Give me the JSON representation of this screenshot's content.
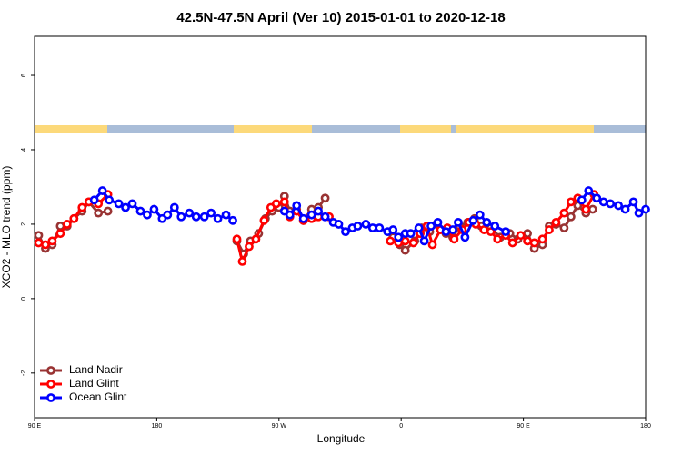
{
  "chart_data": {
    "type": "line",
    "title": "42.5N-47.5N April (Ver 10)   2015-01-01 to 2020-12-18",
    "x_label": "Longitude",
    "y_label": "XCO2 - MLO trend (ppm)",
    "xlim": [
      90,
      540
    ],
    "ylim": [
      -3.2,
      7.05
    ],
    "xticks": [
      {
        "value": 90,
        "label": "90 E"
      },
      {
        "value": 180,
        "label": "180"
      },
      {
        "value": 270,
        "label": "90 W"
      },
      {
        "value": 360,
        "label": "0"
      },
      {
        "value": 450,
        "label": "90 E"
      },
      {
        "value": 540,
        "label": "180"
      }
    ],
    "yticks": [
      -2,
      0,
      2,
      4,
      6
    ],
    "legend": "bottom-left",
    "series": [
      {
        "name": "Land Nadir",
        "color": "#993333",
        "x": [
          93,
          98,
          103,
          109,
          114,
          119,
          125,
          130,
          137,
          144,
          null,
          239,
          244,
          249,
          255,
          260,
          265,
          270,
          274,
          278,
          283,
          288,
          294,
          299,
          304,
          null,
          354,
          359,
          363,
          370,
          375,
          381,
          386,
          393,
          398,
          403,
          409,
          414,
          419,
          426,
          433,
          440,
          446,
          453,
          458,
          464,
          469,
          474,
          480,
          485,
          490,
          496,
          501
        ],
        "values": [
          1.7,
          1.35,
          1.45,
          1.95,
          1.95,
          2.15,
          2.35,
          2.6,
          2.3,
          2.35,
          null,
          1.55,
          1.2,
          1.55,
          1.75,
          2.15,
          2.35,
          2.45,
          2.75,
          2.35,
          2.4,
          2.1,
          2.4,
          2.45,
          2.7,
          null,
          1.65,
          1.45,
          1.3,
          1.55,
          1.9,
          1.8,
          2.0,
          1.75,
          1.65,
          1.95,
          2.05,
          2.15,
          1.95,
          1.9,
          1.65,
          1.75,
          1.6,
          1.75,
          1.35,
          1.45,
          1.95,
          2.0,
          1.9,
          2.2,
          2.5,
          2.3,
          2.4
        ]
      },
      {
        "name": "Land Glint",
        "color": "#ff0000",
        "x": [
          93,
          98,
          103,
          109,
          114,
          119,
          125,
          130,
          137,
          144,
          null,
          239,
          243,
          248,
          253,
          259,
          264,
          268,
          274,
          278,
          283,
          288,
          294,
          299,
          307,
          null,
          352,
          358,
          363,
          369,
          374,
          379,
          383,
          389,
          394,
          399,
          405,
          410,
          415,
          421,
          426,
          431,
          437,
          442,
          448,
          453,
          458,
          464,
          469,
          474,
          480,
          485,
          490,
          496,
          502
        ],
        "values": [
          1.5,
          1.45,
          1.55,
          1.75,
          2.0,
          2.15,
          2.45,
          2.6,
          2.55,
          2.8,
          null,
          1.6,
          1.0,
          1.4,
          1.6,
          2.1,
          2.45,
          2.55,
          2.6,
          2.2,
          2.35,
          2.1,
          2.15,
          2.2,
          2.2,
          null,
          1.55,
          1.5,
          1.55,
          1.5,
          1.75,
          1.95,
          1.45,
          1.85,
          1.9,
          1.6,
          1.85,
          2.05,
          2.0,
          1.85,
          1.8,
          1.6,
          1.7,
          1.5,
          1.7,
          1.55,
          1.5,
          1.6,
          1.85,
          2.05,
          2.3,
          2.6,
          2.7,
          2.4,
          2.8
        ]
      },
      {
        "name": "Ocean Glint",
        "color": "#0000ff",
        "x": [
          134,
          140,
          145,
          152,
          157,
          162,
          168,
          173,
          178,
          184,
          188,
          193,
          198,
          204,
          209,
          215,
          220,
          225,
          231,
          236,
          null,
          274,
          278,
          283,
          288,
          294,
          299,
          304,
          310,
          314,
          319,
          324,
          328,
          334,
          339,
          344,
          350,
          354,
          358,
          363,
          367,
          373,
          377,
          382,
          387,
          393,
          398,
          402,
          407,
          413,
          418,
          423,
          429,
          437,
          null,
          493,
          498,
          504,
          509,
          514,
          520,
          525,
          531,
          535,
          540
        ],
        "values": [
          2.65,
          2.9,
          2.65,
          2.55,
          2.45,
          2.55,
          2.35,
          2.25,
          2.4,
          2.15,
          2.25,
          2.45,
          2.2,
          2.3,
          2.2,
          2.2,
          2.3,
          2.15,
          2.25,
          2.1,
          null,
          2.35,
          2.25,
          2.5,
          2.15,
          2.25,
          2.35,
          2.2,
          2.05,
          2.0,
          1.8,
          1.9,
          1.95,
          2.0,
          1.9,
          1.9,
          1.8,
          1.85,
          1.65,
          1.75,
          1.75,
          1.9,
          1.55,
          1.95,
          2.05,
          1.8,
          1.85,
          2.05,
          1.65,
          2.1,
          2.25,
          2.05,
          1.95,
          1.8,
          null,
          2.65,
          2.9,
          2.7,
          2.6,
          2.55,
          2.5,
          2.4,
          2.6,
          2.3,
          2.4
        ]
      }
    ]
  }
}
